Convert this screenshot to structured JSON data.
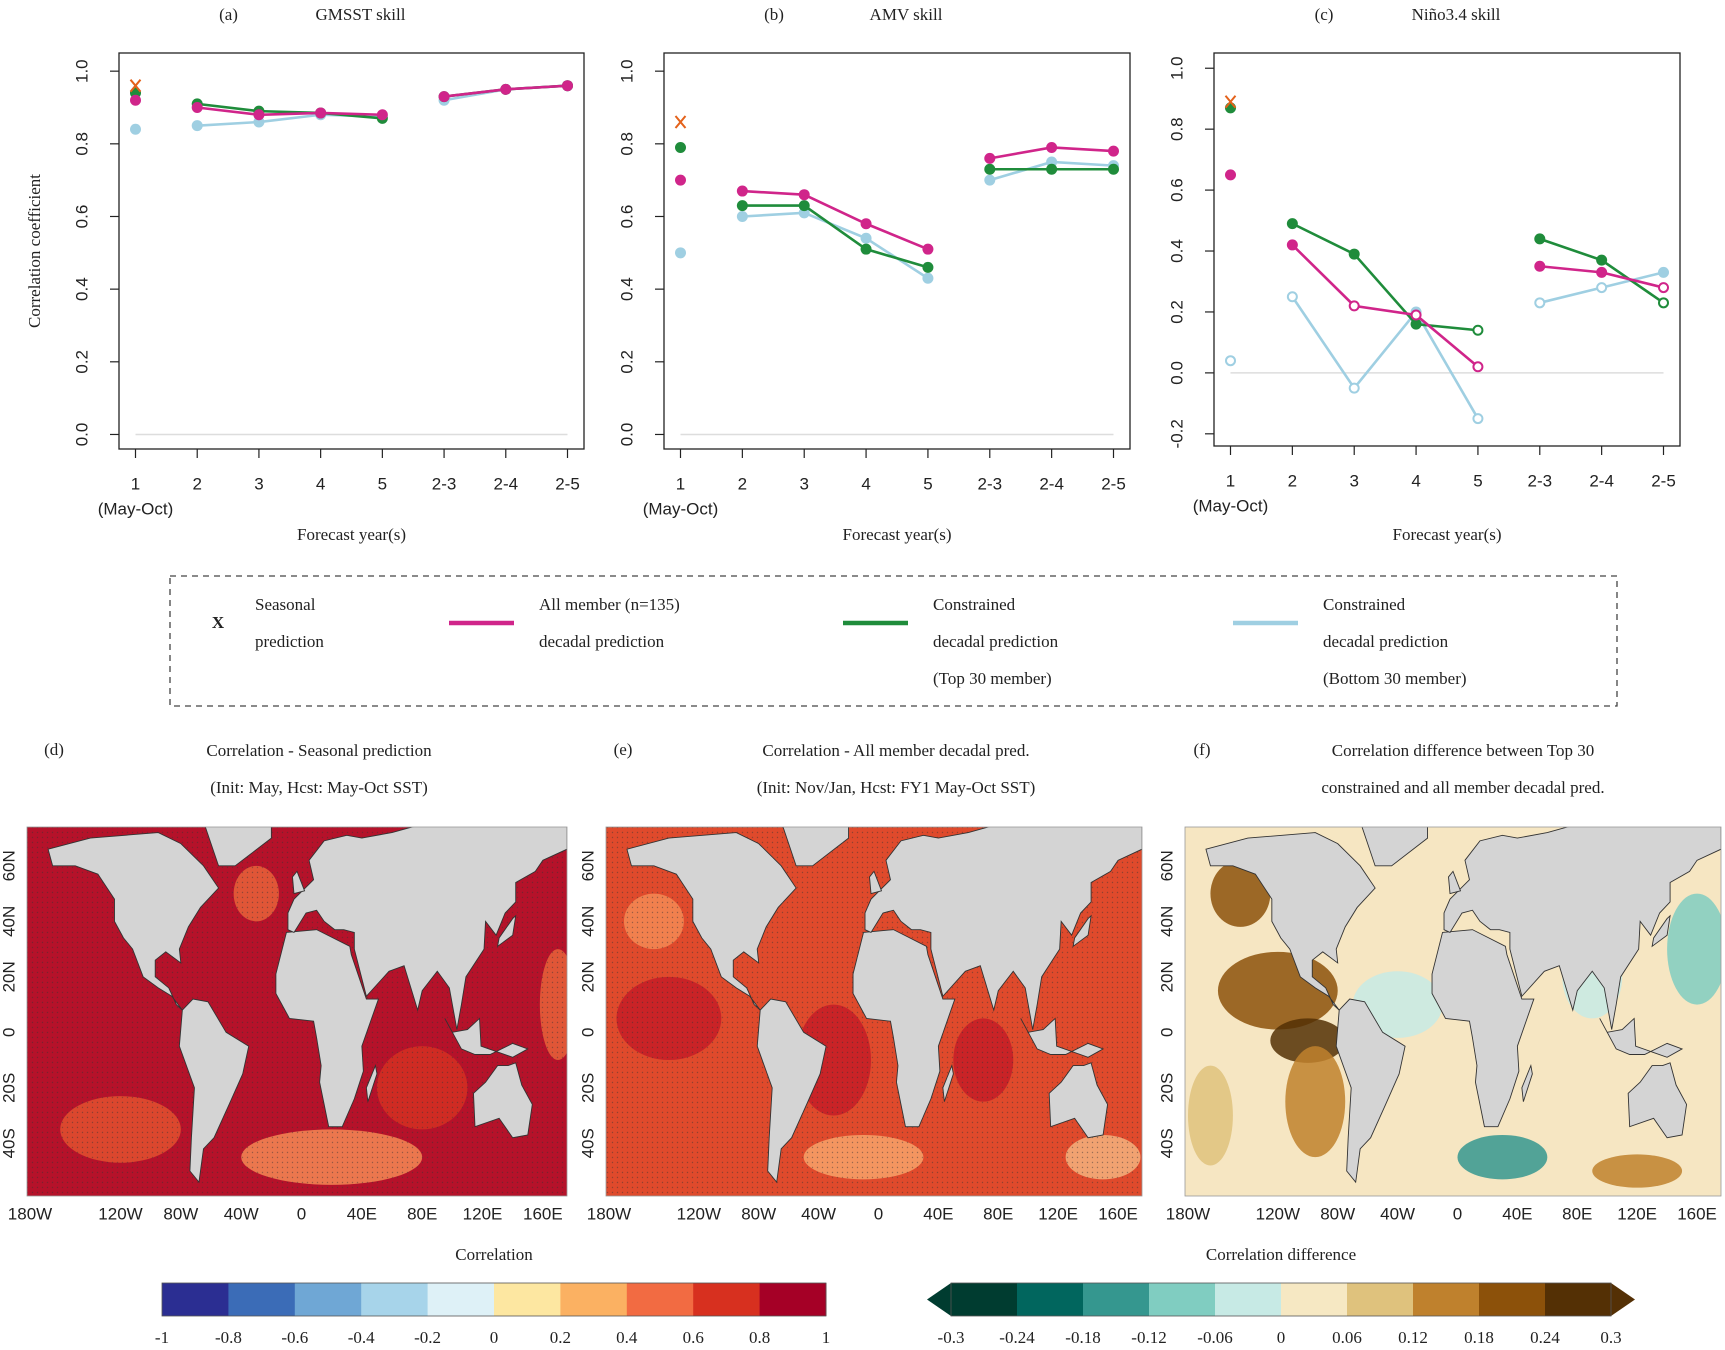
{
  "chart_data": [
    {
      "type": "line",
      "panel": "(a)",
      "title": "GMSST skill",
      "ylabel": "Correlation coefficient",
      "xlabel": "Forecast year(s)",
      "xtick_note": "(May-Oct)",
      "categories": [
        "1",
        "2",
        "3",
        "4",
        "5",
        "2-3",
        "2-4",
        "2-5"
      ],
      "ylim": [
        -0.04,
        1.05
      ],
      "yticks": [
        {
          "value": 0,
          "label": "0.0"
        },
        0.2,
        0.4,
        0.6,
        0.8,
        {
          "value": 1,
          "label": "1.0"
        }
      ],
      "series": [
        {
          "name": "Seasonal\nprediction",
          "color": "#e4621b",
          "marker": "x",
          "values": [
            0.96,
            null,
            null,
            null,
            null,
            null,
            null,
            null
          ]
        },
        {
          "name": "All member (n=135)\ndecadal prediction",
          "color": "#d0258a",
          "values": [
            0.92,
            0.9,
            0.88,
            0.885,
            0.88,
            0.93,
            0.95,
            0.96
          ]
        },
        {
          "name": "Constrained\ndecadal prediction\n(Top 30 member)",
          "color": "#1f8c3b",
          "values": [
            0.94,
            0.91,
            0.89,
            0.885,
            0.87,
            0.93,
            0.95,
            0.96
          ]
        },
        {
          "name": "Constrained\ndecadal prediction\n(Bottom 30 member)",
          "color": "#9fcfe2",
          "values": [
            0.84,
            0.85,
            0.86,
            0.88,
            0.875,
            0.92,
            0.95,
            0.96
          ]
        }
      ]
    },
    {
      "type": "line",
      "panel": "(b)",
      "title": "AMV skill",
      "xlabel": "Forecast year(s)",
      "xtick_note": "(May-Oct)",
      "categories": [
        "1",
        "2",
        "3",
        "4",
        "5",
        "2-3",
        "2-4",
        "2-5"
      ],
      "ylim": [
        -0.04,
        1.05
      ],
      "yticks": [
        {
          "value": 0,
          "label": "0.0"
        },
        0.2,
        0.4,
        0.6,
        0.8,
        {
          "value": 1,
          "label": "1.0"
        }
      ],
      "series": [
        {
          "name": "Seasonal\nprediction",
          "color": "#e4621b",
          "marker": "x",
          "values": [
            0.86,
            null,
            null,
            null,
            null,
            null,
            null,
            null
          ]
        },
        {
          "name": "All member (n=135)\ndecadal prediction",
          "color": "#d0258a",
          "values": [
            0.7,
            0.67,
            0.66,
            0.58,
            0.51,
            0.76,
            0.79,
            0.78
          ]
        },
        {
          "name": "Constrained\ndecadal prediction\n(Top 30 member)",
          "color": "#1f8c3b",
          "values": [
            0.79,
            0.63,
            0.63,
            0.51,
            0.46,
            0.73,
            0.73,
            0.73
          ]
        },
        {
          "name": "Constrained\ndecadal prediction\n(Bottom 30 member)",
          "color": "#9fcfe2",
          "values": [
            0.5,
            0.6,
            0.61,
            0.54,
            0.43,
            0.7,
            0.75,
            0.74
          ]
        }
      ]
    },
    {
      "type": "line",
      "panel": "(c)",
      "title": "Niño3.4 skill",
      "xlabel": "Forecast year(s)",
      "xtick_note": "(May-Oct)",
      "categories": [
        "1",
        "2",
        "3",
        "4",
        "5",
        "2-3",
        "2-4",
        "2-5"
      ],
      "ylim": [
        -0.24,
        1.05
      ],
      "yticks": [
        -0.2,
        {
          "value": 0,
          "label": "0.0"
        },
        0.2,
        0.4,
        0.6,
        0.8,
        {
          "value": 1,
          "label": "1.0"
        }
      ],
      "series": [
        {
          "name": "Seasonal\nprediction",
          "color": "#e4621b",
          "marker": "x",
          "values": [
            0.89,
            null,
            null,
            null,
            null,
            null,
            null,
            null
          ]
        },
        {
          "name": "All member (n=135)\ndecadal prediction",
          "color": "#d0258a",
          "values": [
            0.65,
            0.42,
            0.22,
            0.19,
            0.02,
            0.35,
            0.33,
            0.28
          ],
          "filled": [
            true,
            true,
            false,
            false,
            false,
            true,
            true,
            false
          ]
        },
        {
          "name": "Constrained\ndecadal prediction\n(Top 30 member)",
          "color": "#1f8c3b",
          "values": [
            0.87,
            0.49,
            0.39,
            0.16,
            0.14,
            0.44,
            0.37,
            0.23
          ],
          "filled": [
            true,
            true,
            true,
            true,
            false,
            true,
            true,
            false
          ]
        },
        {
          "name": "Constrained\ndecadal prediction\n(Bottom 30 member)",
          "color": "#9fcfe2",
          "values": [
            0.04,
            0.25,
            -0.05,
            0.2,
            -0.15,
            0.23,
            0.28,
            0.33
          ],
          "filled": [
            false,
            false,
            false,
            true,
            false,
            false,
            false,
            true
          ]
        }
      ]
    },
    {
      "type": "map",
      "panel": "(d)",
      "title": [
        "Correlation - Seasonal prediction",
        "(Init: May, Hcst: May-Oct SST)"
      ],
      "xlim": [
        -182,
        176
      ],
      "ylim": [
        -59,
        74
      ],
      "xticks": [
        {
          "value": -180,
          "label": "180W"
        },
        {
          "value": -120,
          "label": "120W"
        },
        {
          "value": -80,
          "label": "80W"
        },
        {
          "value": -40,
          "label": "40W"
        },
        0,
        {
          "value": 40,
          "label": "40E"
        },
        {
          "value": 80,
          "label": "80E"
        },
        {
          "value": 120,
          "label": "120E"
        },
        {
          "value": 160,
          "label": "160E"
        }
      ],
      "yticks": [
        {
          "value": 60,
          "label": "60N"
        },
        {
          "value": 40,
          "label": "40N"
        },
        {
          "value": 20,
          "label": "20N"
        },
        0,
        {
          "value": -20,
          "label": "20S"
        },
        {
          "value": -40,
          "label": "40S"
        }
      ]
    },
    {
      "type": "map",
      "panel": "(e)",
      "title": [
        "Correlation - All member decadal pred.",
        "(Init: Nov/Jan, Hcst: FY1 May-Oct SST)"
      ],
      "xlim": [
        -182,
        176
      ],
      "ylim": [
        -59,
        74
      ],
      "xticks": [
        {
          "value": -180,
          "label": "180W"
        },
        {
          "value": -120,
          "label": "120W"
        },
        {
          "value": -80,
          "label": "80W"
        },
        {
          "value": -40,
          "label": "40W"
        },
        0,
        {
          "value": 40,
          "label": "40E"
        },
        {
          "value": 80,
          "label": "80E"
        },
        {
          "value": 120,
          "label": "120E"
        },
        {
          "value": 160,
          "label": "160E"
        }
      ],
      "yticks": [
        {
          "value": 60,
          "label": "60N"
        },
        {
          "value": 40,
          "label": "40N"
        },
        {
          "value": 20,
          "label": "20N"
        },
        0,
        {
          "value": -20,
          "label": "20S"
        },
        {
          "value": -40,
          "label": "40S"
        }
      ]
    },
    {
      "type": "map",
      "panel": "(f)",
      "title": [
        "Correlation difference between Top 30",
        "constrained and all member decadal pred."
      ],
      "xlim": [
        -182,
        176
      ],
      "ylim": [
        -59,
        74
      ],
      "xticks": [
        {
          "value": -180,
          "label": "180W"
        },
        {
          "value": -120,
          "label": "120W"
        },
        {
          "value": -80,
          "label": "80W"
        },
        {
          "value": -40,
          "label": "40W"
        },
        0,
        {
          "value": 40,
          "label": "40E"
        },
        {
          "value": 80,
          "label": "80E"
        },
        {
          "value": 120,
          "label": "120E"
        },
        {
          "value": 160,
          "label": "160E"
        }
      ],
      "yticks": [
        {
          "value": 60,
          "label": "60N"
        },
        {
          "value": 40,
          "label": "40N"
        },
        {
          "value": 20,
          "label": "20N"
        },
        0,
        {
          "value": -20,
          "label": "20S"
        },
        {
          "value": -40,
          "label": "40S"
        }
      ]
    },
    {
      "type": "colorbar",
      "label": "Correlation",
      "extend": false,
      "ticks": [
        -1,
        -0.8,
        -0.6,
        -0.4,
        -0.2,
        0,
        0.2,
        0.4,
        0.6,
        0.8,
        1
      ],
      "colors": [
        "#2b2e92",
        "#3b6cb7",
        "#6fa7d5",
        "#a7d4ea",
        "#def1f7",
        "#fde7a1",
        "#fbb162",
        "#f26b42",
        "#d7301f",
        "#a50026"
      ]
    },
    {
      "type": "colorbar",
      "label": "Correlation difference",
      "extend": true,
      "ticks": [
        -0.3,
        -0.24,
        -0.18,
        -0.12,
        -0.06,
        0,
        0.06,
        0.12,
        0.18,
        0.24,
        0.3
      ],
      "colors": [
        "#003c30",
        "#01665e",
        "#35978f",
        "#80cdc1",
        "#c7eae5",
        "#f6e8c3",
        "#dfc27d",
        "#bf812d",
        "#8c510a",
        "#543005"
      ]
    }
  ]
}
